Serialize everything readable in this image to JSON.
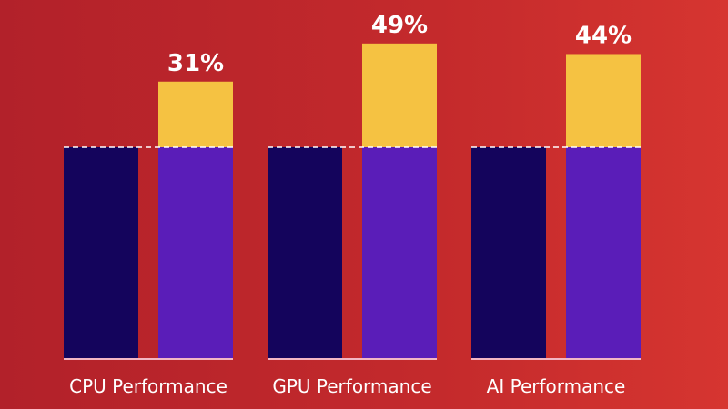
{
  "chart_data": {
    "type": "bar",
    "categories": [
      "CPU Performance",
      "GPU Performance",
      "AI Performance"
    ],
    "series": [
      {
        "values": [
          100,
          100,
          100
        ]
      },
      {
        "values": [
          100,
          100,
          100
        ],
        "increase": [
          31,
          49,
          44
        ]
      }
    ],
    "data_labels": [
      "31%",
      "49%",
      "44%"
    ],
    "ylim": [
      0,
      150
    ],
    "grid": false,
    "reference_line": 100,
    "colors": {
      "previous": "#14045c",
      "current": "#5a1db8",
      "increase": "#f5c242",
      "baseline": "#f3b6c4",
      "reference_line": "#ffffff",
      "text": "#ffffff"
    }
  }
}
